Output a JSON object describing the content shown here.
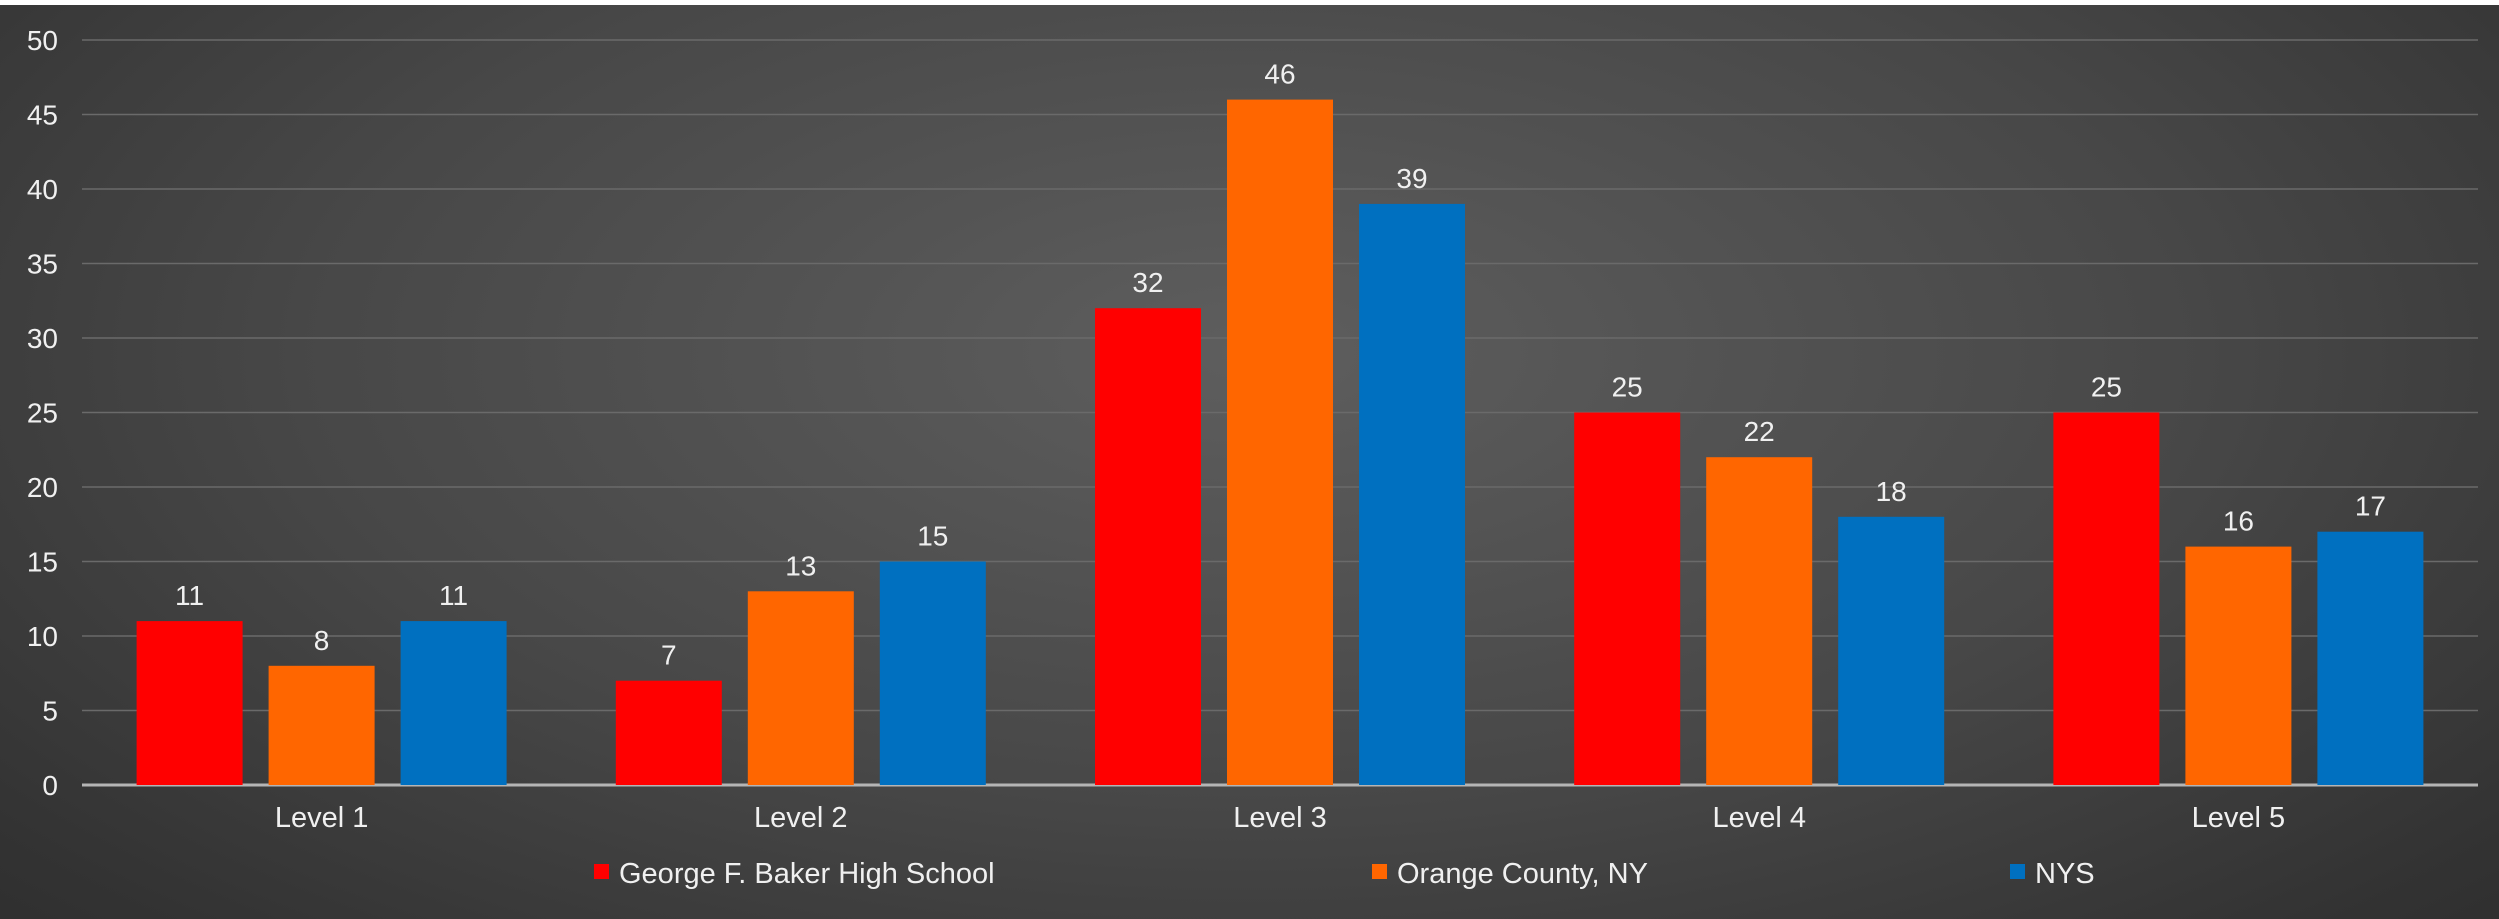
{
  "chart_data": {
    "type": "bar",
    "categories": [
      "Level 1",
      "Level 2",
      "Level 3",
      "Level 4",
      "Level 5"
    ],
    "series": [
      {
        "name": "George F. Baker High School",
        "values": [
          11,
          7,
          32,
          25,
          25
        ],
        "color": "#ff0000"
      },
      {
        "name": "Orange County, NY",
        "values": [
          8,
          13,
          46,
          22,
          16
        ],
        "color": "#ff6600"
      },
      {
        "name": "NYS",
        "values": [
          11,
          15,
          39,
          18,
          17
        ],
        "color": "#0070c0"
      }
    ],
    "ylim": [
      0,
      50
    ],
    "yticks": [
      0,
      5,
      10,
      15,
      20,
      25,
      30,
      35,
      40,
      45,
      50
    ],
    "data_labels": true,
    "grid": true,
    "legend_position": "bottom"
  },
  "colors": {
    "text": "#f0f0f0",
    "gridline": "#6a6a6a",
    "axis": "#b5b5b5"
  }
}
